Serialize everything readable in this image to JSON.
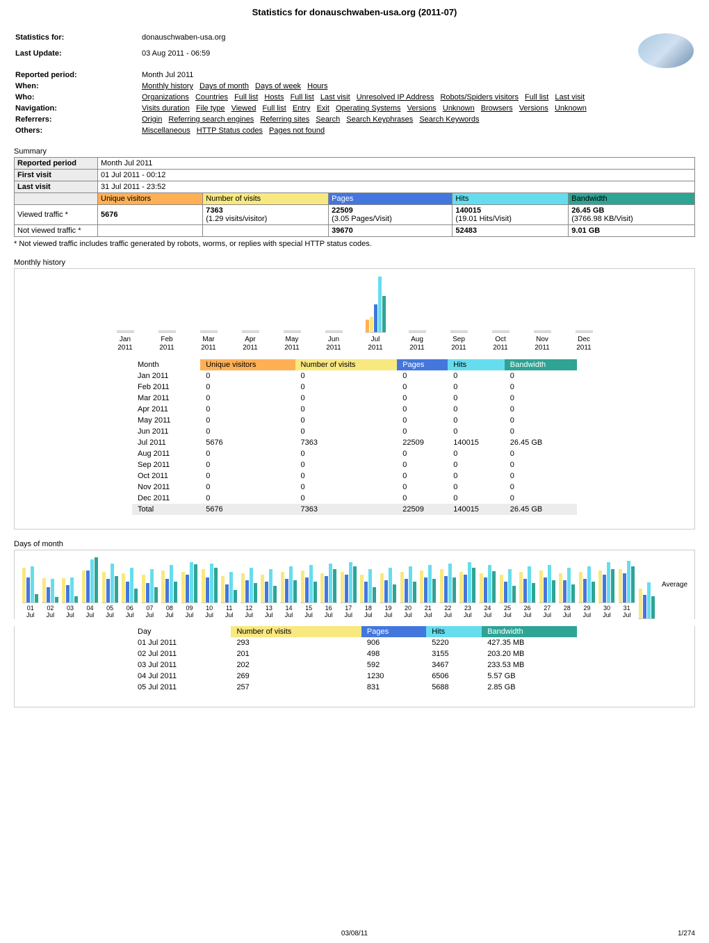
{
  "page": {
    "title": "Statistics for donauschwaben-usa.org (2011-07)",
    "footer_date": "03/08/11",
    "footer_page": "1/274"
  },
  "header": {
    "rows": [
      {
        "label": "Statistics for:",
        "text": "donauschwaben-usa.org"
      },
      {
        "label": "Last Update:",
        "text": "03 Aug 2011 - 06:59"
      },
      {
        "label": "Reported period:",
        "text": "Month Jul 2011"
      },
      {
        "label": "When:",
        "links": [
          "Monthly history",
          "Days of month",
          "Days of week",
          "Hours"
        ]
      },
      {
        "label": "Who:",
        "links": [
          "Organizations",
          "Countries",
          "Full list",
          "Hosts",
          "Full list",
          "Last visit",
          "Unresolved IP Address",
          "Robots/Spiders visitors",
          "Full list",
          "Last visit"
        ]
      },
      {
        "label": "Navigation:",
        "links": [
          "Visits duration",
          "File type",
          "Viewed",
          "Full list",
          "Entry",
          "Exit",
          "Operating Systems",
          "Versions",
          "Unknown",
          "Browsers",
          "Versions",
          "Unknown"
        ]
      },
      {
        "label": "Referrers:",
        "links": [
          "Origin",
          "Referring search engines",
          "Referring sites",
          "Search",
          "Search Keyphrases",
          "Search Keywords"
        ]
      },
      {
        "label": "Others:",
        "links": [
          "Miscellaneous",
          "HTTP Status codes",
          "Pages not found"
        ]
      }
    ]
  },
  "summary": {
    "title": "Summary",
    "labels": {
      "reported_period": "Reported period",
      "reported_period_val": "Month Jul 2011",
      "first_visit": "First visit",
      "first_visit_val": "01 Jul 2011 - 00:12",
      "last_visit": "Last visit",
      "last_visit_val": "31 Jul 2011 - 23:52",
      "uv": "Unique visitors",
      "nv": "Number of visits",
      "pg": "Pages",
      "hi": "Hits",
      "bw": "Bandwidth",
      "viewed": "Viewed traffic *",
      "notviewed": "Not viewed traffic *"
    },
    "viewed": {
      "uv": "5676",
      "nv": "7363",
      "nv2": "(1.29 visits/visitor)",
      "pg": "22509",
      "pg2": "(3.05 Pages/Visit)",
      "hi": "140015",
      "hi2": "(19.01 Hits/Visit)",
      "bw": "26.45 GB",
      "bw2": "(3766.98 KB/Visit)"
    },
    "notviewed": {
      "pg": "39670",
      "hi": "52483",
      "bw": "9.01 GB"
    },
    "footnote": "* Not viewed traffic includes traffic generated by robots, worms, or replies with special HTTP status codes."
  },
  "colors": {
    "uv": "#ffb055",
    "nv": "#f8e880",
    "pg": "#4477dd",
    "hi": "#66ddee",
    "bw": "#2ea495",
    "header_bg": "#ececec",
    "border": "#888888"
  },
  "monthly": {
    "title": "Monthly history",
    "headers": {
      "month": "Month",
      "uv": "Unique visitors",
      "nv": "Number of visits",
      "pg": "Pages",
      "hi": "Hits",
      "bw": "Bandwidth"
    },
    "months": [
      "Jan 2011",
      "Feb 2011",
      "Mar 2011",
      "Apr 2011",
      "May 2011",
      "Jun 2011",
      "Jul 2011",
      "Aug 2011",
      "Sep 2011",
      "Oct 2011",
      "Nov 2011",
      "Dec 2011"
    ],
    "month_short": [
      {
        "m": "Jan",
        "y": "2011"
      },
      {
        "m": "Feb",
        "y": "2011"
      },
      {
        "m": "Mar",
        "y": "2011"
      },
      {
        "m": "Apr",
        "y": "2011"
      },
      {
        "m": "May",
        "y": "2011"
      },
      {
        "m": "Jun",
        "y": "2011"
      },
      {
        "m": "Jul",
        "y": "2011"
      },
      {
        "m": "Aug",
        "y": "2011"
      },
      {
        "m": "Sep",
        "y": "2011"
      },
      {
        "m": "Oct",
        "y": "2011"
      },
      {
        "m": "Nov",
        "y": "2011"
      },
      {
        "m": "Dec",
        "y": "2011"
      }
    ],
    "rows": [
      {
        "month": "Jan 2011",
        "uv": "0",
        "nv": "0",
        "pg": "0",
        "hi": "0",
        "bw": "0"
      },
      {
        "month": "Feb 2011",
        "uv": "0",
        "nv": "0",
        "pg": "0",
        "hi": "0",
        "bw": "0"
      },
      {
        "month": "Mar 2011",
        "uv": "0",
        "nv": "0",
        "pg": "0",
        "hi": "0",
        "bw": "0"
      },
      {
        "month": "Apr 2011",
        "uv": "0",
        "nv": "0",
        "pg": "0",
        "hi": "0",
        "bw": "0"
      },
      {
        "month": "May 2011",
        "uv": "0",
        "nv": "0",
        "pg": "0",
        "hi": "0",
        "bw": "0"
      },
      {
        "month": "Jun 2011",
        "uv": "0",
        "nv": "0",
        "pg": "0",
        "hi": "0",
        "bw": "0"
      },
      {
        "month": "Jul 2011",
        "uv": "5676",
        "nv": "7363",
        "pg": "22509",
        "hi": "140015",
        "bw": "26.45 GB"
      },
      {
        "month": "Aug 2011",
        "uv": "0",
        "nv": "0",
        "pg": "0",
        "hi": "0",
        "bw": "0"
      },
      {
        "month": "Sep 2011",
        "uv": "0",
        "nv": "0",
        "pg": "0",
        "hi": "0",
        "bw": "0"
      },
      {
        "month": "Oct 2011",
        "uv": "0",
        "nv": "0",
        "pg": "0",
        "hi": "0",
        "bw": "0"
      },
      {
        "month": "Nov 2011",
        "uv": "0",
        "nv": "0",
        "pg": "0",
        "hi": "0",
        "bw": "0"
      },
      {
        "month": "Dec 2011",
        "uv": "0",
        "nv": "0",
        "pg": "0",
        "hi": "0",
        "bw": "0"
      }
    ],
    "total": {
      "label": "Total",
      "uv": "5676",
      "nv": "7363",
      "pg": "22509",
      "hi": "140015",
      "bw": "26.45 GB"
    },
    "chart_heights": {
      "jul": {
        "uv": 18,
        "nv": 22,
        "pg": 40,
        "hi": 80,
        "bw": 52
      }
    }
  },
  "dom": {
    "title": "Days of month",
    "avg_label": "Average",
    "headers": {
      "day": "Day",
      "nv": "Number of visits",
      "pg": "Pages",
      "hi": "Hits",
      "bw": "Bandwidth"
    },
    "days": [
      {
        "d": "01",
        "m": "Jul",
        "nv": 293,
        "pg": 906,
        "hi": 5220,
        "bw": "427.35 MB",
        "h": {
          "nv": 50,
          "pg": 36,
          "hi": 52,
          "bw": 12
        }
      },
      {
        "d": "02",
        "m": "Jul",
        "nv": 201,
        "pg": 498,
        "hi": 3155,
        "bw": "203.20 MB",
        "h": {
          "nv": 35,
          "pg": 22,
          "hi": 34,
          "bw": 8
        }
      },
      {
        "d": "03",
        "m": "Jul",
        "nv": 202,
        "pg": 592,
        "hi": 3467,
        "bw": "233.53 MB",
        "h": {
          "nv": 35,
          "pg": 25,
          "hi": 36,
          "bw": 9
        }
      },
      {
        "d": "04",
        "m": "Jul",
        "nv": 269,
        "pg": 1230,
        "hi": 6506,
        "bw": "5.57 GB",
        "h": {
          "nv": 46,
          "pg": 46,
          "hi": 62,
          "bw": 65
        }
      },
      {
        "d": "05",
        "m": "Jul",
        "nv": 257,
        "pg": 831,
        "hi": 5688,
        "bw": "2.85 GB",
        "h": {
          "nv": 44,
          "pg": 34,
          "hi": 56,
          "bw": 38
        }
      },
      {
        "d": "06",
        "m": "Jul",
        "h": {
          "nv": 42,
          "pg": 30,
          "hi": 50,
          "bw": 20
        }
      },
      {
        "d": "07",
        "m": "Jul",
        "h": {
          "nv": 40,
          "pg": 28,
          "hi": 48,
          "bw": 22
        }
      },
      {
        "d": "08",
        "m": "Jul",
        "h": {
          "nv": 46,
          "pg": 34,
          "hi": 54,
          "bw": 30
        }
      },
      {
        "d": "09",
        "m": "Jul",
        "h": {
          "nv": 44,
          "pg": 40,
          "hi": 58,
          "bw": 55
        }
      },
      {
        "d": "10",
        "m": "Jul",
        "h": {
          "nv": 48,
          "pg": 36,
          "hi": 56,
          "bw": 50
        }
      },
      {
        "d": "11",
        "m": "Jul",
        "h": {
          "nv": 38,
          "pg": 26,
          "hi": 44,
          "bw": 18
        }
      },
      {
        "d": "12",
        "m": "Jul",
        "h": {
          "nv": 42,
          "pg": 32,
          "hi": 50,
          "bw": 28
        }
      },
      {
        "d": "13",
        "m": "Jul",
        "h": {
          "nv": 40,
          "pg": 30,
          "hi": 48,
          "bw": 24
        }
      },
      {
        "d": "14",
        "m": "Jul",
        "h": {
          "nv": 44,
          "pg": 34,
          "hi": 52,
          "bw": 32
        }
      },
      {
        "d": "15",
        "m": "Jul",
        "h": {
          "nv": 46,
          "pg": 36,
          "hi": 54,
          "bw": 30
        }
      },
      {
        "d": "16",
        "m": "Jul",
        "h": {
          "nv": 42,
          "pg": 38,
          "hi": 56,
          "bw": 48
        }
      },
      {
        "d": "17",
        "m": "Jul",
        "h": {
          "nv": 44,
          "pg": 40,
          "hi": 58,
          "bw": 52
        }
      },
      {
        "d": "18",
        "m": "Jul",
        "h": {
          "nv": 40,
          "pg": 30,
          "hi": 48,
          "bw": 22
        }
      },
      {
        "d": "19",
        "m": "Jul",
        "h": {
          "nv": 42,
          "pg": 32,
          "hi": 50,
          "bw": 26
        }
      },
      {
        "d": "20",
        "m": "Jul",
        "h": {
          "nv": 44,
          "pg": 34,
          "hi": 52,
          "bw": 30
        }
      },
      {
        "d": "21",
        "m": "Jul",
        "h": {
          "nv": 46,
          "pg": 36,
          "hi": 54,
          "bw": 34
        }
      },
      {
        "d": "22",
        "m": "Jul",
        "h": {
          "nv": 48,
          "pg": 38,
          "hi": 56,
          "bw": 36
        }
      },
      {
        "d": "23",
        "m": "Jul",
        "h": {
          "nv": 44,
          "pg": 40,
          "hi": 58,
          "bw": 50
        }
      },
      {
        "d": "24",
        "m": "Jul",
        "h": {
          "nv": 42,
          "pg": 36,
          "hi": 54,
          "bw": 45
        }
      },
      {
        "d": "25",
        "m": "Jul",
        "h": {
          "nv": 40,
          "pg": 30,
          "hi": 48,
          "bw": 24
        }
      },
      {
        "d": "26",
        "m": "Jul",
        "h": {
          "nv": 44,
          "pg": 34,
          "hi": 52,
          "bw": 28
        }
      },
      {
        "d": "27",
        "m": "Jul",
        "h": {
          "nv": 46,
          "pg": 36,
          "hi": 54,
          "bw": 32
        }
      },
      {
        "d": "28",
        "m": "Jul",
        "h": {
          "nv": 42,
          "pg": 32,
          "hi": 50,
          "bw": 26
        }
      },
      {
        "d": "29",
        "m": "Jul",
        "h": {
          "nv": 44,
          "pg": 34,
          "hi": 52,
          "bw": 30
        }
      },
      {
        "d": "30",
        "m": "Jul",
        "h": {
          "nv": 46,
          "pg": 40,
          "hi": 58,
          "bw": 48
        }
      },
      {
        "d": "31",
        "m": "Jul",
        "h": {
          "nv": 48,
          "pg": 42,
          "hi": 60,
          "bw": 52
        }
      }
    ],
    "avg_h": {
      "nv": 43,
      "pg": 34,
      "hi": 52,
      "bw": 32
    }
  }
}
